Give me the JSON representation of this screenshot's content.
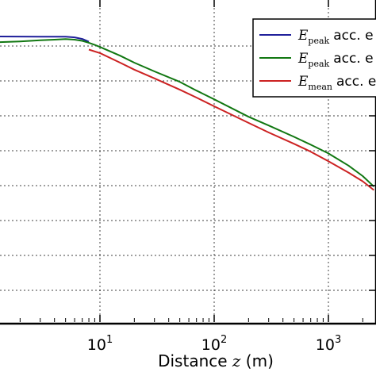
{
  "chart_data": {
    "type": "line",
    "xscale": "log",
    "xlabel_prefix": "Distance ",
    "xlabel_var": "z",
    "xlabel_suffix": " (m)",
    "ylabel": "",
    "title": "",
    "grid": true,
    "legend_position": "top-right",
    "xticks": [
      {
        "base": "10",
        "exp": "1",
        "value": 10
      },
      {
        "base": "10",
        "exp": "2",
        "value": 100
      },
      {
        "base": "10",
        "exp": "3",
        "value": 1000
      }
    ],
    "series": [
      {
        "name_symbol": "E",
        "name_sub": "peak",
        "name_text": "acc. e",
        "color": "#1f1f9a",
        "x": [
          1,
          2,
          3,
          4,
          5,
          6,
          7,
          8
        ],
        "y": [
          0.0,
          -0.005,
          -0.01,
          -0.01,
          -0.015,
          -0.05,
          -0.14,
          -0.3
        ]
      },
      {
        "name_symbol": "E",
        "name_sub": "peak",
        "name_text": "acc. e",
        "color": "#117711",
        "x": [
          1,
          2,
          3,
          4,
          5,
          6,
          7,
          8,
          9,
          10,
          15,
          20,
          30,
          50,
          70,
          100,
          200,
          300,
          500,
          700,
          1000,
          1500,
          2000,
          2500
        ],
        "y": [
          -0.35,
          -0.28,
          -0.22,
          -0.18,
          -0.15,
          -0.18,
          -0.25,
          -0.36,
          -0.48,
          -0.6,
          -1.1,
          -1.5,
          -2.0,
          -2.6,
          -3.1,
          -3.6,
          -4.6,
          -5.1,
          -5.75,
          -6.2,
          -6.7,
          -7.4,
          -8.0,
          -8.6
        ]
      },
      {
        "name_symbol": "E",
        "name_sub": "mean",
        "name_text": "acc. e",
        "color": "#cc2222",
        "x": [
          8,
          10,
          15,
          20,
          30,
          50,
          70,
          100,
          200,
          300,
          500,
          700,
          1000,
          1500,
          2000,
          2500
        ],
        "y": [
          -0.75,
          -0.95,
          -1.5,
          -1.9,
          -2.4,
          -3.05,
          -3.5,
          -4.0,
          -4.95,
          -5.5,
          -6.15,
          -6.6,
          -7.15,
          -7.8,
          -8.3,
          -8.8
        ]
      }
    ]
  }
}
